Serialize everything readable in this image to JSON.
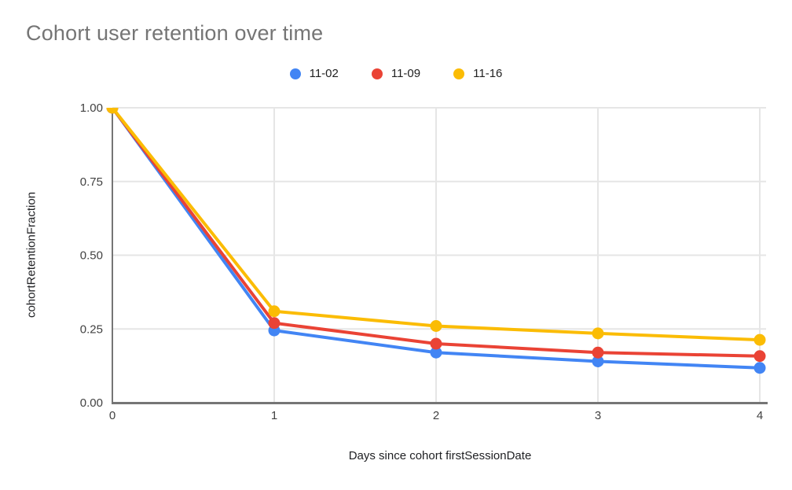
{
  "chart_data": {
    "type": "line",
    "title": "Cohort user retention over time",
    "xlabel": "Days since cohort firstSessionDate",
    "ylabel": "cohortRetentionFraction",
    "x": [
      0,
      1,
      2,
      3,
      4
    ],
    "xticks": [
      "0",
      "1",
      "2",
      "3",
      "4"
    ],
    "yticks": [
      {
        "value": 0.0,
        "label": "0.00"
      },
      {
        "value": 0.25,
        "label": "0.25"
      },
      {
        "value": 0.5,
        "label": "0.50"
      },
      {
        "value": 0.75,
        "label": "0.75"
      },
      {
        "value": 1.0,
        "label": "1.00"
      }
    ],
    "ylim": [
      0,
      1
    ],
    "grid": true,
    "legend_position": "top",
    "series": [
      {
        "name": "11-02",
        "color": "#4285F4",
        "values": [
          1.0,
          0.245,
          0.17,
          0.14,
          0.118
        ]
      },
      {
        "name": "11-09",
        "color": "#EA4335",
        "values": [
          1.0,
          0.27,
          0.2,
          0.17,
          0.158
        ]
      },
      {
        "name": "11-16",
        "color": "#FBBC04",
        "values": [
          1.0,
          0.31,
          0.26,
          0.235,
          0.213
        ]
      }
    ],
    "colors": {
      "title": "#757575",
      "axis_title": "#202124",
      "tick_label": "#424242",
      "legend_label": "#212121",
      "gridline": "#e6e6e6",
      "axis_line": "#757575",
      "background": "#ffffff"
    }
  }
}
